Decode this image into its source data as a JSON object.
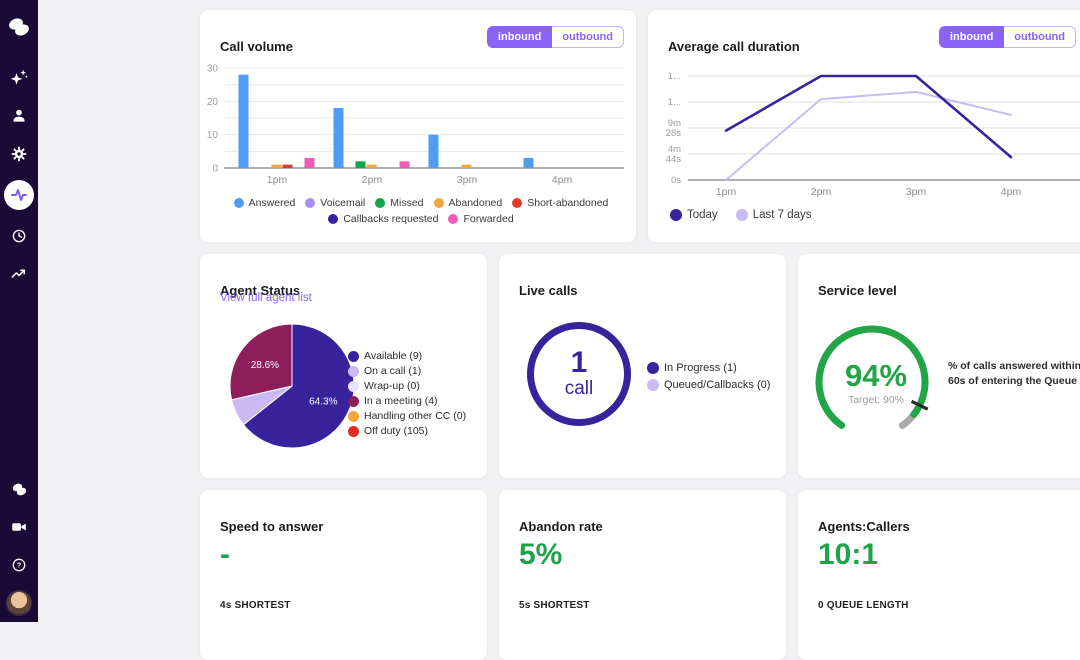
{
  "colors": {
    "sidebar_bg": "#190a36",
    "page_bg": "#f1f1f3",
    "accent_purple": "#8a63f9",
    "indigo": "#38239c",
    "green": "#1ea34b",
    "gauge_green": "#22a546"
  },
  "sidebar": {
    "top_icons": [
      "dialpad-logo",
      "ai-sparkle",
      "contacts",
      "settings",
      "analytics",
      "history",
      "trends"
    ],
    "active_icon": "analytics",
    "bottom_icons": [
      "dialpad-mini",
      "video",
      "help",
      "user-avatar"
    ]
  },
  "call_volume": {
    "title": "Call volume",
    "toggle": {
      "inbound": "inbound",
      "outbound": "outbound",
      "selected": "inbound"
    }
  },
  "avg_duration": {
    "title": "Average call duration",
    "toggle": {
      "inbound": "inbound",
      "outbound": "outbound",
      "selected": "inbound"
    }
  },
  "agent_status": {
    "title": "Agent Status",
    "link": "View full agent list"
  },
  "live_calls": {
    "title": "Live calls",
    "value": "1",
    "unit": "call"
  },
  "service_level": {
    "title": "Service level",
    "value": "94%",
    "target": "Target: 90%",
    "description": "% of calls answered within 60s of entering the Queue"
  },
  "speed_to_answer": {
    "title": "Speed to answer",
    "value": "-",
    "sub": "4s SHORTEST"
  },
  "abandon_rate": {
    "title": "Abandon rate",
    "value": "5%",
    "sub": "5s SHORTEST"
  },
  "agents_callers": {
    "title": "Agents:Callers",
    "value": "10:1",
    "sub": "0 QUEUE LENGTH"
  },
  "chart_data": [
    {
      "id": "call-volume",
      "type": "bar",
      "title": "Call volume",
      "categories": [
        "1pm",
        "2pm",
        "3pm",
        "4pm"
      ],
      "ylim": [
        0,
        30
      ],
      "ytick_step": 5,
      "ylabel_step": 10,
      "grid": true,
      "legend_position": "bottom",
      "series": [
        {
          "name": "Answered",
          "color": "#4f9cf0",
          "values": [
            28,
            18,
            10,
            3
          ]
        },
        {
          "name": "Voicemail",
          "color": "#a98ef5",
          "values": [
            0,
            0,
            0,
            0
          ]
        },
        {
          "name": "Missed",
          "color": "#16a34a",
          "values": [
            0,
            2,
            0,
            0
          ]
        },
        {
          "name": "Abandoned",
          "color": "#f4a63b",
          "values": [
            1,
            1,
            1,
            0
          ]
        },
        {
          "name": "Short-abandoned",
          "color": "#e23a2e",
          "values": [
            1,
            0,
            0,
            0
          ]
        },
        {
          "name": "Callbacks requested",
          "color": "#38239c",
          "values": [
            0,
            0,
            0,
            0
          ]
        },
        {
          "name": "Forwarded",
          "color": "#f05cb2",
          "values": [
            3,
            2,
            0,
            0
          ]
        }
      ]
    },
    {
      "id": "avg-duration",
      "type": "line",
      "title": "Average call duration",
      "categories": [
        "1pm",
        "2pm",
        "3pm",
        "4pm"
      ],
      "ylim_seconds": [
        0,
        1136
      ],
      "y_ticks": [
        {
          "seconds": 0,
          "label": "0s"
        },
        {
          "seconds": 284,
          "label": "4m 44s"
        },
        {
          "seconds": 568,
          "label": "9m 28s"
        },
        {
          "seconds": 852,
          "label": "1..."
        },
        {
          "seconds": 1136,
          "label": "1..."
        }
      ],
      "grid": true,
      "legend_position": "bottom",
      "series": [
        {
          "name": "Today",
          "color": "#38239c",
          "values_seconds": [
            540,
            1136,
            1136,
            250
          ]
        },
        {
          "name": "Last 7 days",
          "color": "#c9bcf5",
          "values_seconds": [
            0,
            884,
            962,
            710
          ]
        }
      ]
    },
    {
      "id": "agent-status",
      "type": "pie",
      "slices": [
        {
          "label": "Available (9)",
          "count": 9,
          "color": "#38239c",
          "pct_label": "64.3%",
          "in_pie": true
        },
        {
          "label": "On a call (1)",
          "count": 1,
          "color": "#cbb9f3",
          "pct_label": "",
          "in_pie": true
        },
        {
          "label": "Wrap-up (0)",
          "count": 0,
          "color": "#e9e2fb",
          "pct_label": "",
          "in_pie": true
        },
        {
          "label": "In a meeting (4)",
          "count": 4,
          "color": "#8e1d5c",
          "pct_label": "28.6%",
          "in_pie": true
        },
        {
          "label": "Handling other CC (0)",
          "count": 0,
          "color": "#f4a63b",
          "pct_label": "",
          "in_pie": true
        },
        {
          "label": "Off duty (105)",
          "count": 105,
          "color": "#e22c20",
          "pct_label": "",
          "in_pie": false
        }
      ]
    },
    {
      "id": "live-calls",
      "type": "donut",
      "center_value": "1",
      "center_unit": "call",
      "segments": [
        {
          "label": "In Progress (1)",
          "count": 1,
          "color": "#38239c"
        },
        {
          "label": "Queued/Callbacks (0)",
          "count": 0,
          "color": "#cbb9f3"
        }
      ]
    },
    {
      "id": "service-level",
      "type": "gauge",
      "value_pct": 94,
      "target_pct": 90,
      "value_label": "94%",
      "target_label": "Target: 90%",
      "color": "#22a546",
      "track_color": "#a9a9ab",
      "description": "% of calls answered within 60s of entering the Queue"
    }
  ]
}
